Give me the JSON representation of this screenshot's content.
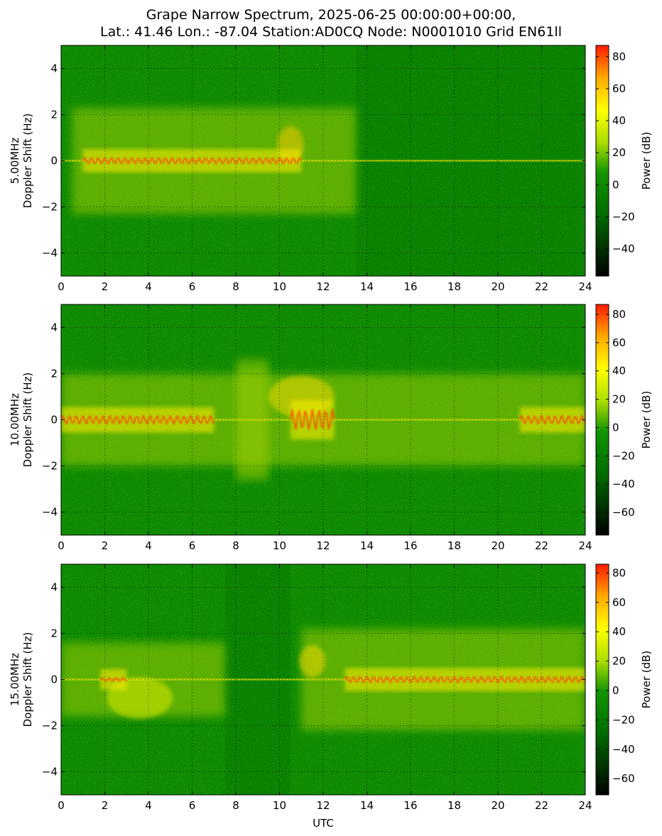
{
  "title_lines": [
    "Grape Narrow Spectrum, 2025-06-25 00:00:00+00:00,",
    "Lat.: 41.46 Lon.: -87.04 Station:AD0CQ Node: N0001010 Grid EN61ll"
  ],
  "colors": {
    "colormap": [
      "#000000",
      "#007f00",
      "#1a9f00",
      "#aadd00",
      "#ffff00",
      "#ffaa00",
      "#ff2000"
    ],
    "background": "#ffffff"
  },
  "chart_data": [
    {
      "type": "heatmap",
      "ylabel_lines": [
        "5.00MHz",
        "Doppler Shift (Hz)"
      ],
      "xlabel": "",
      "xlim": [
        0,
        24
      ],
      "ylim": [
        -5,
        5
      ],
      "x_ticks": [
        "0",
        "2",
        "4",
        "6",
        "8",
        "10",
        "12",
        "14",
        "16",
        "18",
        "20",
        "22",
        "24"
      ],
      "y_ticks": [
        "4",
        "2",
        "0",
        "−2",
        "−4"
      ],
      "grid": true,
      "colorbar": {
        "label": "Power (dB)",
        "range": [
          -57,
          87
        ],
        "ticks": [
          "80",
          "60",
          "40",
          "20",
          "0",
          "−20",
          "−40"
        ]
      }
    },
    {
      "type": "heatmap",
      "ylabel_lines": [
        "10.00MHz",
        "Doppler Shift (Hz)"
      ],
      "xlabel": "",
      "xlim": [
        0,
        24
      ],
      "ylim": [
        -5,
        5
      ],
      "x_ticks": [
        "0",
        "2",
        "4",
        "6",
        "8",
        "10",
        "12",
        "14",
        "16",
        "18",
        "20",
        "22",
        "24"
      ],
      "y_ticks": [
        "4",
        "2",
        "0",
        "−2",
        "−4"
      ],
      "grid": true,
      "colorbar": {
        "label": "Power (dB)",
        "range": [
          -76,
          87
        ],
        "ticks": [
          "80",
          "60",
          "40",
          "20",
          "0",
          "−20",
          "−40",
          "−60"
        ]
      }
    },
    {
      "type": "heatmap",
      "ylabel_lines": [
        "15.00MHz",
        "Doppler Shift (Hz)"
      ],
      "xlabel": "UTC",
      "xlim": [
        0,
        24
      ],
      "ylim": [
        -5,
        5
      ],
      "x_ticks": [
        "0",
        "2",
        "4",
        "6",
        "8",
        "10",
        "12",
        "14",
        "16",
        "18",
        "20",
        "22",
        "24"
      ],
      "y_ticks": [
        "4",
        "2",
        "0",
        "−2",
        "−4"
      ],
      "grid": true,
      "colorbar": {
        "label": "Power (dB)",
        "range": [
          -71,
          86
        ],
        "ticks": [
          "80",
          "60",
          "40",
          "20",
          "0",
          "−20",
          "−40",
          "−60"
        ]
      }
    }
  ]
}
